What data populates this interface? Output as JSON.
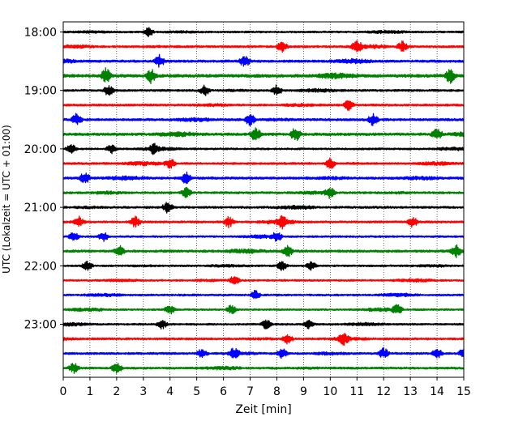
{
  "chart_data": {
    "type": "line",
    "title": "",
    "xlabel": "Zeit  [min]",
    "ylabel": "UTC (Lokalzeit = UTC + 01:00)",
    "xlim": [
      0,
      15
    ],
    "x_ticks": [
      0,
      1,
      2,
      3,
      4,
      5,
      6,
      7,
      8,
      9,
      10,
      11,
      12,
      13,
      14,
      15
    ],
    "x_grid": "dotted vertical lines at every minute",
    "y_tick_labels": [
      "18:00",
      "19:00",
      "20:00",
      "21:00",
      "22:00",
      "23:00"
    ],
    "trace_interval_min": 15,
    "start_time": "18:00",
    "traces": [
      {
        "start": "18:00",
        "color": "#000000",
        "amplitude": 0.35,
        "events": [
          3.2
        ]
      },
      {
        "start": "18:15",
        "color": "#ff0000",
        "amplitude": 0.4,
        "events": [
          8.2,
          11.0,
          12.7
        ]
      },
      {
        "start": "18:30",
        "color": "#0000ff",
        "amplitude": 0.45,
        "events": [
          3.6,
          6.8
        ]
      },
      {
        "start": "18:45",
        "color": "#008000",
        "amplitude": 0.55,
        "events": [
          1.6,
          3.3,
          14.5
        ]
      },
      {
        "start": "19:00",
        "color": "#000000",
        "amplitude": 0.4,
        "events": [
          1.7,
          5.3,
          8.0
        ]
      },
      {
        "start": "19:15",
        "color": "#ff0000",
        "amplitude": 0.4,
        "events": [
          10.7
        ]
      },
      {
        "start": "19:30",
        "color": "#0000ff",
        "amplitude": 0.45,
        "events": [
          0.5,
          7.0,
          11.6
        ]
      },
      {
        "start": "19:45",
        "color": "#008000",
        "amplitude": 0.5,
        "events": [
          7.2,
          8.7,
          14.0
        ]
      },
      {
        "start": "20:00",
        "color": "#000000",
        "amplitude": 0.35,
        "events": [
          0.3,
          1.8,
          3.4
        ]
      },
      {
        "start": "20:15",
        "color": "#ff0000",
        "amplitude": 0.4,
        "events": [
          4.0,
          10.0
        ]
      },
      {
        "start": "20:30",
        "color": "#0000ff",
        "amplitude": 0.45,
        "events": [
          0.8,
          4.6
        ]
      },
      {
        "start": "20:45",
        "color": "#008000",
        "amplitude": 0.4,
        "events": [
          4.6,
          10.0
        ]
      },
      {
        "start": "21:00",
        "color": "#000000",
        "amplitude": 0.4,
        "events": [
          3.9
        ]
      },
      {
        "start": "21:15",
        "color": "#ff0000",
        "amplitude": 0.4,
        "events": [
          0.6,
          2.7,
          6.2,
          8.2,
          13.1
        ]
      },
      {
        "start": "21:30",
        "color": "#0000ff",
        "amplitude": 0.35,
        "events": [
          0.4,
          1.5,
          8.0
        ]
      },
      {
        "start": "21:45",
        "color": "#008000",
        "amplitude": 0.45,
        "events": [
          2.1,
          8.4,
          14.7
        ]
      },
      {
        "start": "22:00",
        "color": "#000000",
        "amplitude": 0.35,
        "events": [
          0.9,
          8.2,
          9.3
        ]
      },
      {
        "start": "22:15",
        "color": "#ff0000",
        "amplitude": 0.35,
        "events": [
          6.4
        ]
      },
      {
        "start": "22:30",
        "color": "#0000ff",
        "amplitude": 0.35,
        "events": [
          7.2
        ]
      },
      {
        "start": "22:45",
        "color": "#008000",
        "amplitude": 0.35,
        "events": [
          4.0,
          6.3,
          12.5
        ]
      },
      {
        "start": "23:00",
        "color": "#000000",
        "amplitude": 0.35,
        "events": [
          3.7,
          7.6,
          9.2
        ]
      },
      {
        "start": "23:15",
        "color": "#ff0000",
        "amplitude": 0.4,
        "events": [
          8.4,
          10.5
        ]
      },
      {
        "start": "23:30",
        "color": "#0000ff",
        "amplitude": 0.4,
        "events": [
          5.2,
          6.4,
          8.2,
          12.0,
          14.0,
          15.0
        ]
      },
      {
        "start": "23:45",
        "color": "#008000",
        "amplitude": 0.4,
        "events": [
          0.4,
          2.0
        ]
      }
    ]
  }
}
